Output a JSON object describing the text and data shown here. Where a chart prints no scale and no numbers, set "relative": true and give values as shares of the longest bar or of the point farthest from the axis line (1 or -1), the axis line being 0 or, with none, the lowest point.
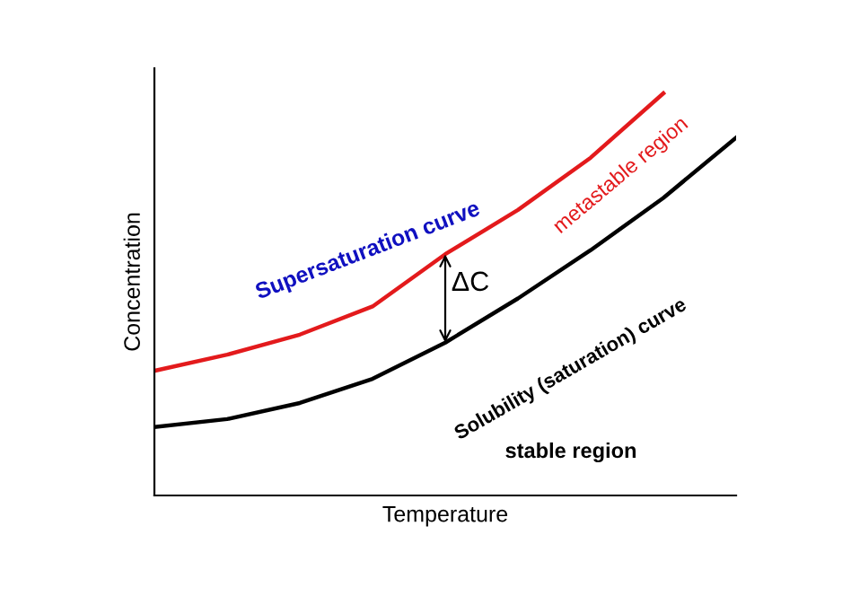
{
  "chart_data": {
    "type": "line",
    "relative": true,
    "xlabel": "Temperature",
    "ylabel": "Concentration",
    "categories": [
      null,
      null,
      null,
      null,
      null,
      null,
      null,
      null,
      null
    ],
    "series": [
      {
        "name": "Supersaturation curve",
        "color": "#e31a1c",
        "values": [
          0.31,
          0.35,
          0.4,
          0.47,
          0.6,
          0.71,
          0.84,
          1.0,
          null
        ]
      },
      {
        "name": "Solubility (saturation) curve",
        "color": "#000000",
        "values": [
          0.17,
          0.19,
          0.23,
          0.29,
          0.38,
          0.49,
          0.61,
          0.74,
          0.89
        ]
      }
    ],
    "annotations": [
      "metastable region",
      "ΔC",
      "stable region"
    ],
    "marker": "none",
    "line_style": "solid",
    "grid": false,
    "legend": false,
    "tick_labels": false
  }
}
